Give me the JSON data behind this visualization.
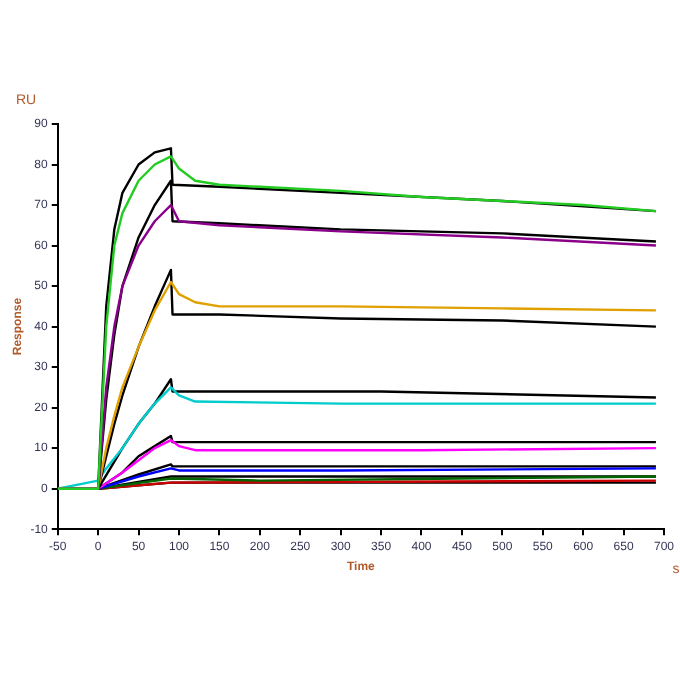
{
  "chart_data": {
    "type": "line",
    "xlabel": "Time",
    "ylabel": "Response",
    "annotations": [
      "RU",
      "s"
    ],
    "xlim": [
      -50,
      700
    ],
    "xticks": [
      -50,
      0,
      50,
      100,
      150,
      200,
      250,
      300,
      350,
      400,
      450,
      500,
      550,
      600,
      650,
      700
    ],
    "ylim": [
      -10,
      90
    ],
    "yticks": [
      -10,
      0,
      10,
      20,
      30,
      40,
      50,
      60,
      70,
      80,
      90
    ],
    "grid": false,
    "legend": false,
    "marker": "none",
    "line_style": "solid",
    "series": [
      {
        "color": "#22cc22",
        "x": [
          -50,
          -10,
          0,
          10,
          20,
          30,
          50,
          70,
          90,
          100,
          120,
          150,
          200,
          300,
          400,
          500,
          600,
          690
        ],
        "values": [
          0,
          0,
          0,
          40,
          60,
          68,
          76,
          80,
          82,
          79,
          76,
          75,
          74.5,
          73.5,
          72,
          71,
          70,
          68.5
        ]
      },
      {
        "color": "#000000",
        "x": [
          0,
          10,
          20,
          30,
          50,
          70,
          90,
          92,
          150,
          300,
          500,
          690
        ],
        "values": [
          0,
          45,
          64,
          73,
          80,
          83,
          84,
          75,
          74.5,
          73,
          71,
          68.5
        ]
      },
      {
        "color": "#8b008b",
        "x": [
          -50,
          0,
          10,
          20,
          30,
          50,
          70,
          90,
          100,
          150,
          300,
          500,
          690
        ],
        "values": [
          0,
          0,
          25,
          40,
          50,
          60,
          66,
          70,
          66,
          65,
          63.5,
          62,
          60
        ]
      },
      {
        "color": "#000000",
        "x": [
          0,
          10,
          20,
          30,
          50,
          70,
          90,
          92,
          150,
          300,
          500,
          690
        ],
        "values": [
          0,
          22,
          38,
          50,
          62,
          70,
          76,
          66,
          65.5,
          64,
          63,
          61
        ]
      },
      {
        "color": "#e0a000",
        "x": [
          -50,
          0,
          10,
          20,
          30,
          50,
          70,
          90,
          100,
          120,
          150,
          300,
          500,
          690
        ],
        "values": [
          0,
          0,
          10,
          18,
          25,
          35,
          44,
          51,
          48,
          46,
          45,
          45,
          44.5,
          44
        ]
      },
      {
        "color": "#000000",
        "x": [
          0,
          10,
          20,
          30,
          50,
          70,
          90,
          92,
          150,
          300,
          500,
          690
        ],
        "values": [
          0,
          8,
          16,
          23,
          35,
          45,
          54,
          43,
          43,
          42,
          41.5,
          40
        ]
      },
      {
        "color": "#00cccc",
        "x": [
          -50,
          0,
          10,
          30,
          50,
          70,
          90,
          100,
          120,
          300,
          690
        ],
        "values": [
          0,
          2,
          5,
          10,
          16,
          21,
          25,
          23,
          21.5,
          21,
          21
        ]
      },
      {
        "color": "#000000",
        "x": [
          0,
          30,
          50,
          70,
          90,
          92,
          350,
          690
        ],
        "values": [
          0,
          10,
          16,
          21,
          27,
          24,
          24,
          22.5
        ]
      },
      {
        "color": "#ff00ff",
        "x": [
          -50,
          0,
          30,
          50,
          70,
          90,
          100,
          120,
          400,
          690
        ],
        "values": [
          0,
          0,
          4,
          7,
          10,
          12,
          10.5,
          9.5,
          9.5,
          10
        ]
      },
      {
        "color": "#000000",
        "x": [
          0,
          30,
          50,
          70,
          90,
          92,
          690
        ],
        "values": [
          0,
          4,
          8,
          10.5,
          13,
          11.5,
          11.5
        ]
      },
      {
        "color": "#0000ff",
        "x": [
          -50,
          0,
          50,
          90,
          100,
          300,
          690
        ],
        "values": [
          0,
          0,
          3,
          5,
          4.5,
          4.5,
          5
        ]
      },
      {
        "color": "#000000",
        "x": [
          0,
          50,
          90,
          92,
          690
        ],
        "values": [
          0,
          3.5,
          6,
          5.5,
          5.5
        ]
      },
      {
        "color": "#006400",
        "x": [
          -50,
          0,
          90,
          200,
          690
        ],
        "values": [
          0,
          0,
          2.5,
          2,
          3
        ]
      },
      {
        "color": "#000000",
        "x": [
          0,
          90,
          690
        ],
        "values": [
          0,
          3,
          3
        ]
      },
      {
        "color": "#cc0000",
        "x": [
          -50,
          0,
          90,
          690
        ],
        "values": [
          0,
          0,
          1.5,
          2
        ]
      },
      {
        "color": "#000000",
        "x": [
          0,
          90,
          690
        ],
        "values": [
          0,
          1.5,
          1.5
        ]
      }
    ]
  }
}
